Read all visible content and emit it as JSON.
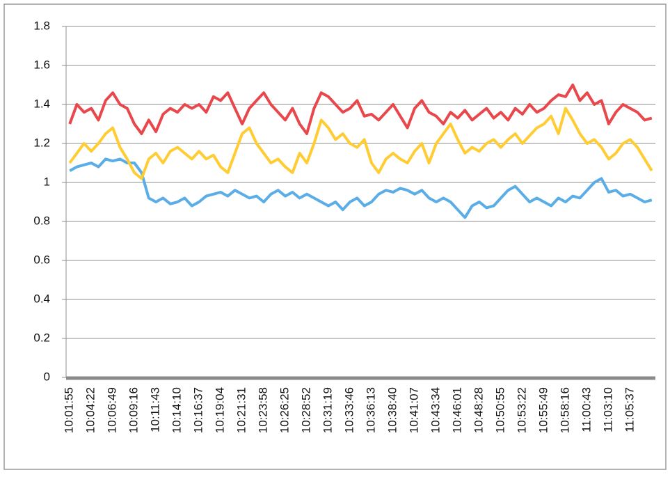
{
  "chart_data": {
    "type": "line",
    "categories": [
      "10:01:55",
      null,
      null,
      "10:04:22",
      null,
      null,
      "10:06:49",
      null,
      null,
      "10:09:16",
      null,
      null,
      "10:11:43",
      null,
      null,
      "10:14:10",
      null,
      null,
      "10:16:37",
      null,
      null,
      "10:19:04",
      null,
      null,
      "10:21:31",
      null,
      null,
      "10:23:58",
      null,
      null,
      "10:26:25",
      null,
      null,
      "10:28:52",
      null,
      null,
      "10:31:19",
      null,
      null,
      "10:33:46",
      null,
      null,
      "10:36:13",
      null,
      null,
      "10:38:40",
      null,
      null,
      "10:41:07",
      null,
      null,
      "10:43:34",
      null,
      null,
      "10:46:01",
      null,
      null,
      "10:48:28",
      null,
      null,
      "10:50:55",
      null,
      null,
      "10:53:22",
      null,
      null,
      "10:55:49",
      null,
      null,
      "10:58:16",
      null,
      null,
      "11:00:43",
      null,
      null,
      "11:03:10",
      null,
      null,
      "11:05:37",
      null,
      null,
      null
    ],
    "series": [
      {
        "color": "#5aade6",
        "values": [
          1.06,
          1.08,
          1.09,
          1.1,
          1.08,
          1.12,
          1.11,
          1.12,
          1.1,
          1.1,
          1.05,
          0.92,
          0.9,
          0.92,
          0.89,
          0.9,
          0.92,
          0.88,
          0.9,
          0.93,
          0.94,
          0.95,
          0.93,
          0.96,
          0.94,
          0.92,
          0.93,
          0.9,
          0.94,
          0.96,
          0.93,
          0.95,
          0.92,
          0.94,
          0.92,
          0.9,
          0.88,
          0.9,
          0.86,
          0.9,
          0.92,
          0.88,
          0.9,
          0.94,
          0.96,
          0.95,
          0.97,
          0.96,
          0.94,
          0.96,
          0.92,
          0.9,
          0.92,
          0.9,
          0.86,
          0.82,
          0.88,
          0.9,
          0.87,
          0.88,
          0.92,
          0.96,
          0.98,
          0.94,
          0.9,
          0.92,
          0.9,
          0.88,
          0.92,
          0.9,
          0.93,
          0.92,
          0.96,
          1.0,
          1.02,
          0.95,
          0.96,
          0.93,
          0.94,
          0.92,
          0.9,
          0.91
        ]
      },
      {
        "color": "#ffcc33",
        "values": [
          1.1,
          1.15,
          1.2,
          1.16,
          1.2,
          1.25,
          1.28,
          1.18,
          1.12,
          1.05,
          1.02,
          1.12,
          1.15,
          1.1,
          1.16,
          1.18,
          1.15,
          1.12,
          1.16,
          1.12,
          1.14,
          1.08,
          1.05,
          1.15,
          1.25,
          1.28,
          1.2,
          1.15,
          1.1,
          1.12,
          1.08,
          1.05,
          1.15,
          1.1,
          1.2,
          1.32,
          1.28,
          1.22,
          1.25,
          1.2,
          1.18,
          1.22,
          1.1,
          1.05,
          1.12,
          1.15,
          1.12,
          1.1,
          1.16,
          1.2,
          1.1,
          1.2,
          1.25,
          1.3,
          1.22,
          1.15,
          1.18,
          1.16,
          1.2,
          1.22,
          1.18,
          1.22,
          1.25,
          1.2,
          1.24,
          1.28,
          1.3,
          1.34,
          1.25,
          1.38,
          1.32,
          1.25,
          1.2,
          1.22,
          1.18,
          1.12,
          1.15,
          1.2,
          1.22,
          1.18,
          1.12,
          1.06
        ]
      },
      {
        "color": "#e8474c",
        "values": [
          1.3,
          1.4,
          1.36,
          1.38,
          1.32,
          1.42,
          1.46,
          1.4,
          1.38,
          1.3,
          1.25,
          1.32,
          1.26,
          1.35,
          1.38,
          1.36,
          1.4,
          1.38,
          1.4,
          1.36,
          1.44,
          1.42,
          1.46,
          1.38,
          1.3,
          1.38,
          1.42,
          1.46,
          1.4,
          1.36,
          1.32,
          1.38,
          1.3,
          1.25,
          1.38,
          1.46,
          1.44,
          1.4,
          1.36,
          1.38,
          1.42,
          1.34,
          1.35,
          1.32,
          1.36,
          1.4,
          1.34,
          1.28,
          1.38,
          1.42,
          1.36,
          1.34,
          1.3,
          1.36,
          1.33,
          1.37,
          1.32,
          1.35,
          1.38,
          1.33,
          1.36,
          1.32,
          1.38,
          1.35,
          1.4,
          1.36,
          1.38,
          1.42,
          1.45,
          1.44,
          1.5,
          1.42,
          1.46,
          1.4,
          1.42,
          1.3,
          1.36,
          1.4,
          1.38,
          1.36,
          1.32,
          1.33
        ]
      }
    ],
    "ylim": [
      0,
      1.8
    ],
    "yticks": [
      0,
      0.2,
      0.4,
      0.6,
      0.8,
      1,
      1.2,
      1.4,
      1.6,
      1.8
    ],
    "grid": true
  }
}
